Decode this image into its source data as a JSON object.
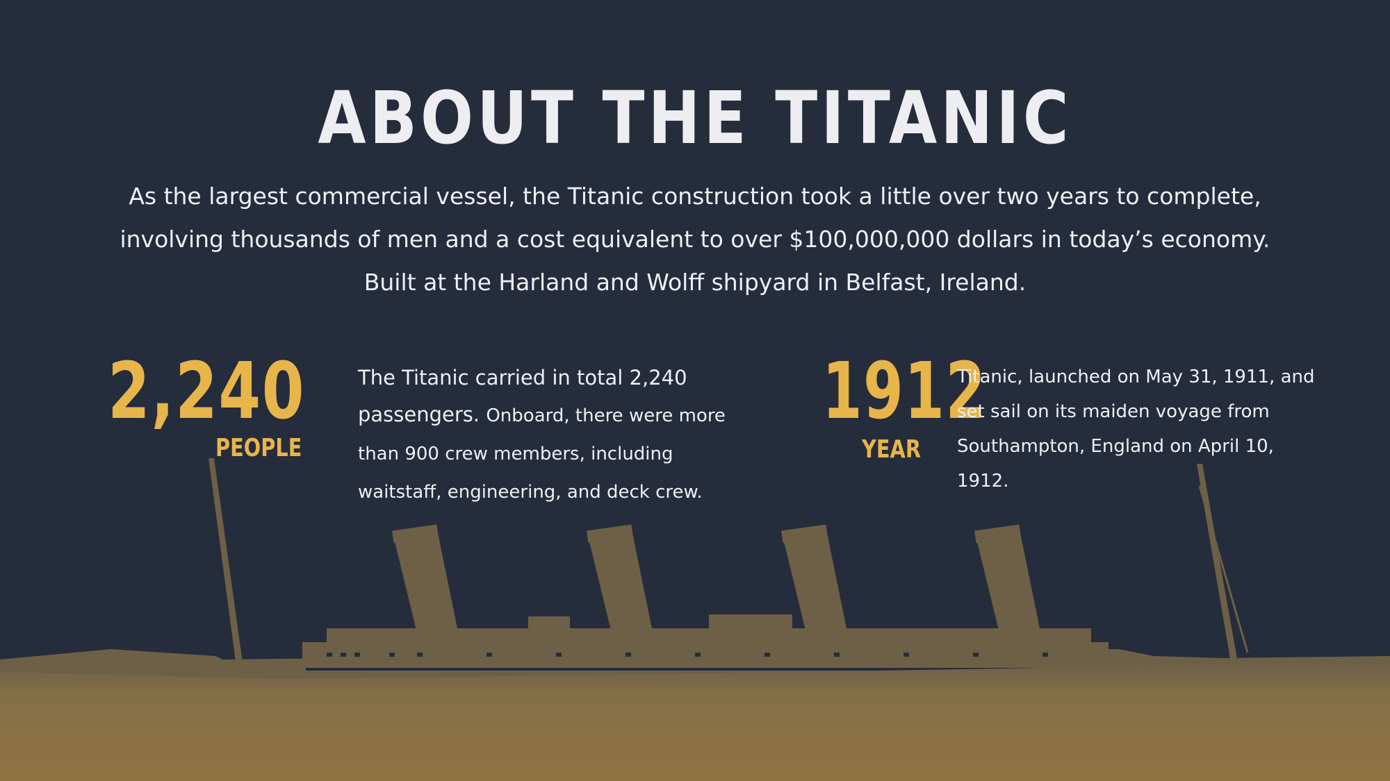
{
  "title": "ABOUT THE TITANIC",
  "intro": "As the largest commercial vessel, the Titanic construction took a little over two years to complete, involving thousands of men and a cost equivalent to over $100,000,000 dollars in today’s economy. Built at the Harland and Wolff shipyard in Belfast, Ireland.",
  "stats": {
    "people": {
      "number": "2,240",
      "label": "PEOPLE",
      "desc_lead": "The Titanic carried in total 2,240 passengers.",
      "desc_rest": "Onboard, there were more than 900 crew members, including waitstaff, engineering, and deck crew."
    },
    "year": {
      "number": "1912",
      "label": "YEAR",
      "desc": "Titanic, launched on May 31, 1911, and set sail on its maiden voyage from Southampton, England on April 10, 1912."
    }
  },
  "colors": {
    "background": "#252c3b",
    "accent": "#e8b54b",
    "text": "#eef0f4",
    "ship": "#7d6a45",
    "ground": "#8c7440"
  }
}
